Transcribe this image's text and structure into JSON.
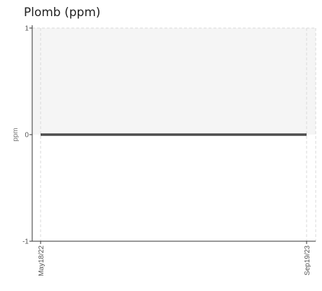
{
  "chart_data": {
    "type": "line",
    "title": "Plomb (ppm)",
    "xlabel": "",
    "ylabel": "ppm",
    "x": [
      "May18/22",
      "Sep19/23"
    ],
    "series": [
      {
        "values": [
          0,
          0
        ]
      }
    ],
    "ylim": [
      -1,
      1
    ],
    "yticks": [
      1,
      0,
      -1
    ],
    "xticks": [
      "May18/22",
      "Sep19/23"
    ],
    "grid": true,
    "legend": "none",
    "colors": {
      "line": "#4d4d4d",
      "band": "#f5f5f5",
      "grid": "#d9d9d9",
      "axis": "#333333"
    }
  }
}
